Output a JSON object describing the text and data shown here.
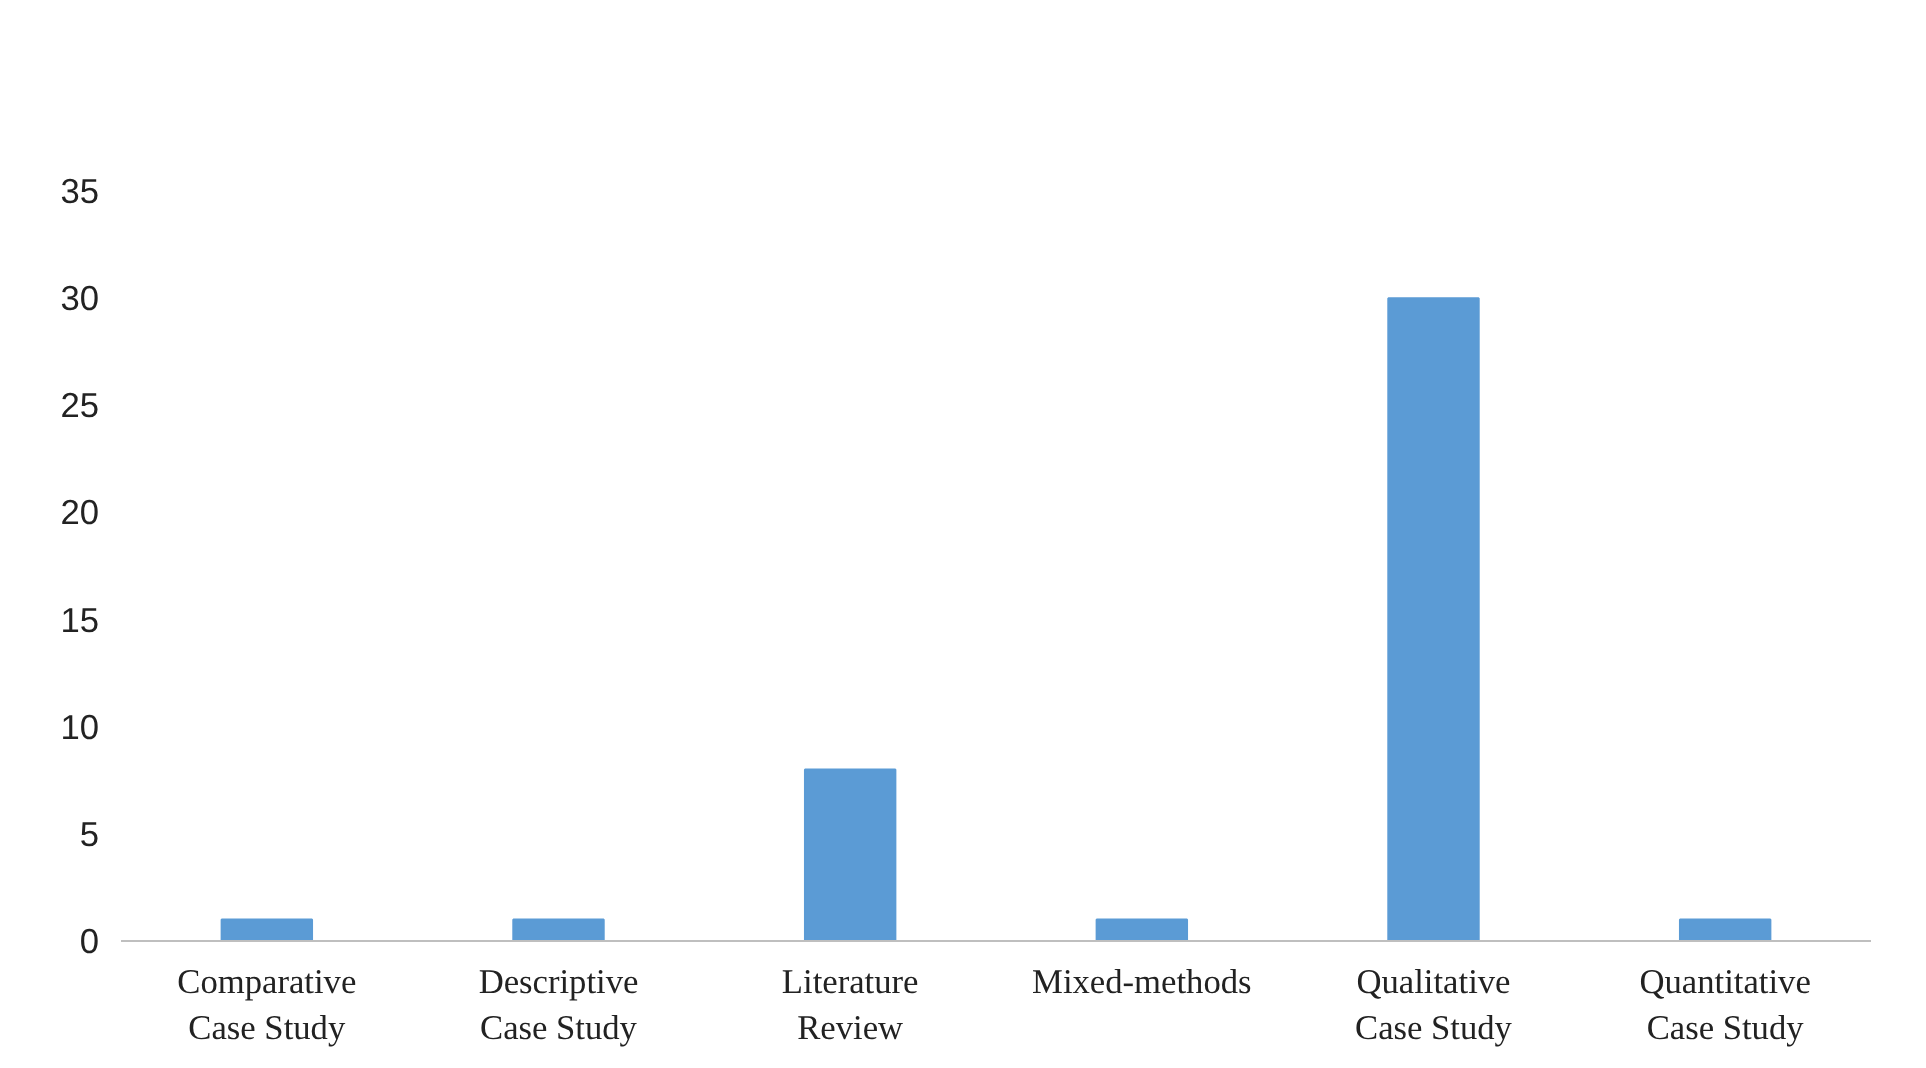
{
  "chart_data": {
    "type": "bar",
    "categories": [
      "Comparative Case Study",
      "Descriptive Case Study",
      "Literature Review",
      "Mixed-methods",
      "Qualitative Case Study",
      "Quantitative Case Study"
    ],
    "values": [
      1,
      1,
      8,
      1,
      30,
      1
    ],
    "color": "#5b9bd5",
    "ylim": [
      0,
      35
    ],
    "yticks": [
      0,
      5,
      10,
      15,
      20,
      25,
      30,
      35
    ],
    "grid": false
  }
}
